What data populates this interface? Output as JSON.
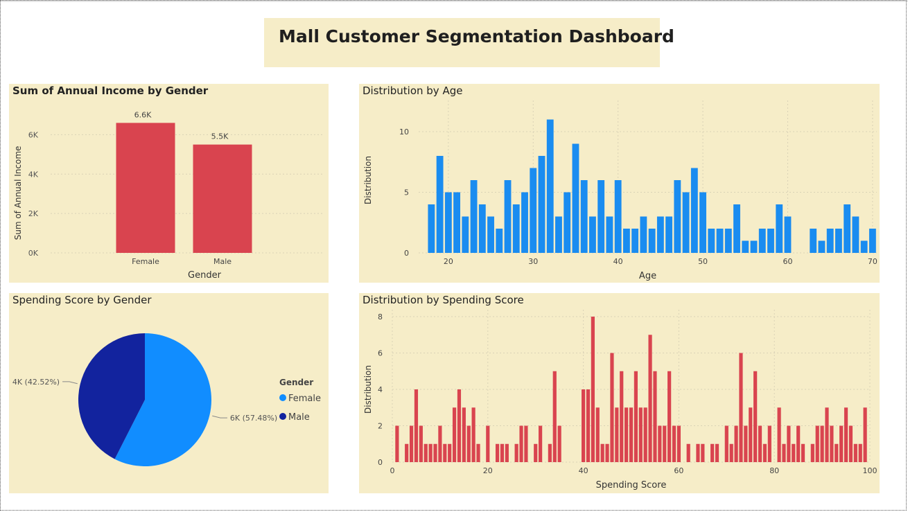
{
  "dashboard": {
    "title": "Mall Customer Segmentation Dashboard",
    "panel_color": "#f6edc8"
  },
  "chart_data": [
    {
      "type": "bar",
      "title": "Sum of Annual Income by Gender",
      "xlabel": "Gender",
      "ylabel": "Sum of Annual Income",
      "categories": [
        "Female",
        "Male"
      ],
      "values": [
        6.6,
        5.5
      ],
      "data_labels": [
        "6.6K",
        "5.5K"
      ],
      "ylim": [
        0,
        7
      ],
      "yticks": [
        0,
        2,
        4,
        6
      ],
      "ytick_labels": [
        "0K",
        "2K",
        "4K",
        "6K"
      ],
      "color": "#d9444f",
      "grid": true
    },
    {
      "type": "bar",
      "title": "Distribution by Age",
      "xlabel": "Age",
      "ylabel": "Distribution",
      "x": [
        18,
        19,
        20,
        21,
        22,
        23,
        24,
        25,
        26,
        27,
        28,
        29,
        30,
        31,
        32,
        33,
        34,
        35,
        36,
        37,
        38,
        39,
        40,
        41,
        42,
        43,
        44,
        45,
        46,
        47,
        48,
        49,
        50,
        51,
        52,
        53,
        54,
        55,
        56,
        57,
        58,
        59,
        60,
        63,
        64,
        65,
        66,
        67,
        68,
        69,
        70
      ],
      "values": [
        4,
        8,
        5,
        5,
        3,
        6,
        4,
        3,
        2,
        6,
        4,
        5,
        7,
        8,
        11,
        3,
        5,
        9,
        6,
        3,
        6,
        3,
        6,
        2,
        2,
        3,
        2,
        3,
        3,
        6,
        5,
        7,
        5,
        2,
        2,
        2,
        4,
        1,
        1,
        2,
        2,
        4,
        3,
        2,
        1,
        2,
        2,
        4,
        3,
        1,
        2
      ],
      "xlim": [
        16.5,
        70.5
      ],
      "xticks": [
        20,
        30,
        40,
        50,
        60,
        70
      ],
      "ylim": [
        0,
        12
      ],
      "yticks": [
        0,
        5,
        10
      ],
      "color": "#1a8cf0",
      "grid": true
    },
    {
      "type": "pie",
      "title": "Spending Score by Gender",
      "legend_title": "Gender",
      "legend_position": "right",
      "slices": [
        {
          "name": "Female",
          "value": 57.48,
          "label": "6K (57.48%)",
          "color": "#118dff"
        },
        {
          "name": "Male",
          "value": 42.52,
          "label": "4K (42.52%)",
          "color": "#12239e"
        }
      ]
    },
    {
      "type": "bar",
      "title": "Distribution by Spending Score",
      "xlabel": "Spending Score",
      "ylabel": "Distribution",
      "x": [
        1,
        2,
        3,
        4,
        5,
        6,
        7,
        8,
        9,
        10,
        11,
        12,
        13,
        14,
        15,
        16,
        17,
        18,
        19,
        20,
        21,
        22,
        23,
        24,
        25,
        26,
        27,
        28,
        29,
        30,
        31,
        32,
        33,
        34,
        35,
        36,
        37,
        38,
        39,
        40,
        41,
        42,
        43,
        44,
        45,
        46,
        47,
        48,
        49,
        50,
        51,
        52,
        53,
        54,
        55,
        56,
        57,
        58,
        59,
        60,
        61,
        62,
        63,
        64,
        65,
        66,
        67,
        68,
        69,
        70,
        71,
        72,
        73,
        74,
        75,
        76,
        77,
        78,
        79,
        80,
        81,
        82,
        83,
        84,
        85,
        86,
        87,
        88,
        89,
        90,
        91,
        92,
        93,
        94,
        95,
        96,
        97,
        98,
        99
      ],
      "values": [
        2,
        0,
        1,
        2,
        4,
        2,
        1,
        1,
        1,
        2,
        1,
        1,
        3,
        4,
        3,
        2,
        3,
        1,
        0,
        2,
        0,
        1,
        1,
        1,
        0,
        1,
        2,
        2,
        0,
        1,
        2,
        0,
        1,
        5,
        2,
        0,
        0,
        0,
        0,
        4,
        4,
        8,
        3,
        1,
        1,
        6,
        3,
        5,
        3,
        3,
        5,
        3,
        3,
        7,
        5,
        2,
        2,
        5,
        2,
        2,
        0,
        1,
        0,
        1,
        1,
        0,
        1,
        1,
        0,
        2,
        1,
        2,
        6,
        2,
        3,
        5,
        2,
        1,
        2,
        0,
        3,
        1,
        2,
        1,
        2,
        1,
        0,
        1,
        2,
        2,
        3,
        2,
        1,
        2,
        3,
        2,
        1,
        1,
        3
      ],
      "xlim": [
        0,
        100
      ],
      "xticks": [
        0,
        20,
        40,
        60,
        80,
        100
      ],
      "ylim": [
        0,
        8
      ],
      "yticks": [
        0,
        2,
        4,
        6,
        8
      ],
      "color": "#d9444f",
      "grid": true
    }
  ]
}
